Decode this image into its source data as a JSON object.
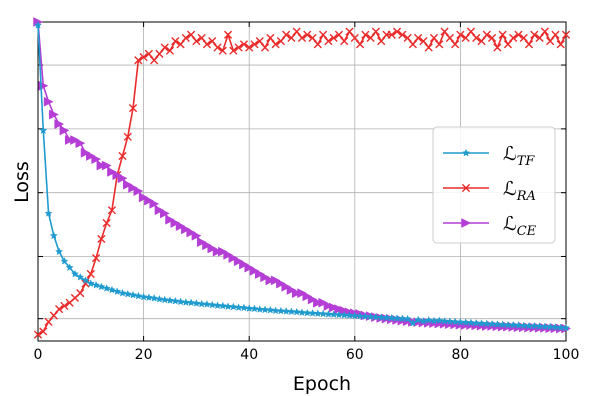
{
  "chart_data": {
    "type": "line",
    "xlabel": "Epoch",
    "ylabel": "Loss",
    "xlim": [
      0,
      100
    ],
    "ylim": [
      0,
      1
    ],
    "x_ticks": [
      "0",
      "20",
      "40",
      "60",
      "80",
      "100"
    ],
    "y_tick_labels_visible": false,
    "grid": true,
    "legend_position": "center-right",
    "x": [
      0,
      1,
      2,
      3,
      4,
      5,
      6,
      7,
      8,
      9,
      10,
      11,
      12,
      13,
      14,
      15,
      16,
      17,
      18,
      19,
      20,
      21,
      22,
      23,
      24,
      25,
      26,
      27,
      28,
      29,
      30,
      31,
      32,
      33,
      34,
      35,
      36,
      37,
      38,
      39,
      40,
      41,
      42,
      43,
      44,
      45,
      46,
      47,
      48,
      49,
      50,
      51,
      52,
      53,
      54,
      55,
      56,
      57,
      58,
      59,
      60,
      61,
      62,
      63,
      64,
      65,
      66,
      67,
      68,
      69,
      70,
      71,
      72,
      73,
      74,
      75,
      76,
      77,
      78,
      79,
      80,
      81,
      82,
      83,
      84,
      85,
      86,
      87,
      88,
      89,
      90,
      91,
      92,
      93,
      94,
      95,
      96,
      97,
      98,
      99,
      100
    ],
    "series": [
      {
        "name": "L_TF",
        "name_base": "ℒ",
        "name_sub": "TF",
        "color": "#1f9bcf",
        "marker": "star",
        "values": [
          0.99,
          0.66,
          0.4,
          0.33,
          0.28,
          0.25,
          0.23,
          0.21,
          0.2,
          0.19,
          0.18,
          0.175,
          0.17,
          0.165,
          0.16,
          0.155,
          0.15,
          0.147,
          0.144,
          0.141,
          0.138,
          0.136,
          0.134,
          0.131,
          0.129,
          0.127,
          0.125,
          0.123,
          0.121,
          0.12,
          0.118,
          0.116,
          0.115,
          0.113,
          0.111,
          0.11,
          0.108,
          0.107,
          0.105,
          0.104,
          0.102,
          0.101,
          0.099,
          0.098,
          0.097,
          0.095,
          0.094,
          0.093,
          0.092,
          0.091,
          0.089,
          0.088,
          0.087,
          0.086,
          0.085,
          0.084,
          0.083,
          0.082,
          0.081,
          0.08,
          0.079,
          0.078,
          0.077,
          0.076,
          0.075,
          0.074,
          0.073,
          0.072,
          0.071,
          0.07,
          0.069,
          0.056,
          0.066,
          0.062,
          0.065,
          0.063,
          0.064,
          0.062,
          0.061,
          0.06,
          0.059,
          0.058,
          0.057,
          0.056,
          0.055,
          0.054,
          0.053,
          0.052,
          0.051,
          0.05,
          0.05,
          0.049,
          0.048,
          0.047,
          0.047,
          0.046,
          0.045,
          0.044,
          0.043,
          0.042,
          0.041
        ]
      },
      {
        "name": "L_RA",
        "name_base": "ℒ",
        "name_sub": "RA",
        "color": "#ea2b2b",
        "marker": "x",
        "values": [
          0.02,
          0.03,
          0.06,
          0.08,
          0.1,
          0.11,
          0.12,
          0.135,
          0.15,
          0.18,
          0.21,
          0.26,
          0.32,
          0.37,
          0.41,
          0.52,
          0.58,
          0.64,
          0.73,
          0.88,
          0.89,
          0.9,
          0.88,
          0.9,
          0.92,
          0.91,
          0.94,
          0.93,
          0.95,
          0.96,
          0.94,
          0.95,
          0.93,
          0.94,
          0.92,
          0.91,
          0.96,
          0.91,
          0.92,
          0.93,
          0.92,
          0.93,
          0.94,
          0.92,
          0.95,
          0.93,
          0.94,
          0.96,
          0.95,
          0.97,
          0.95,
          0.96,
          0.95,
          0.93,
          0.96,
          0.94,
          0.95,
          0.96,
          0.94,
          0.97,
          0.95,
          0.93,
          0.96,
          0.95,
          0.97,
          0.94,
          0.96,
          0.96,
          0.97,
          0.96,
          0.95,
          0.93,
          0.95,
          0.94,
          0.92,
          0.95,
          0.93,
          0.97,
          0.95,
          0.93,
          0.96,
          0.95,
          0.97,
          0.95,
          0.94,
          0.96,
          0.95,
          0.92,
          0.96,
          0.93,
          0.95,
          0.96,
          0.95,
          0.93,
          0.96,
          0.95,
          0.97,
          0.94,
          0.96,
          0.93,
          0.96
        ]
      },
      {
        "name": "L_CE",
        "name_base": "ℒ",
        "name_sub": "CE",
        "color": "#b43ed6",
        "marker": "triangle-right",
        "values": [
          1.0,
          0.8,
          0.75,
          0.71,
          0.68,
          0.66,
          0.63,
          0.63,
          0.62,
          0.59,
          0.58,
          0.57,
          0.55,
          0.55,
          0.53,
          0.52,
          0.51,
          0.49,
          0.48,
          0.47,
          0.45,
          0.44,
          0.43,
          0.41,
          0.4,
          0.38,
          0.37,
          0.36,
          0.35,
          0.34,
          0.33,
          0.31,
          0.3,
          0.29,
          0.28,
          0.28,
          0.27,
          0.26,
          0.25,
          0.24,
          0.23,
          0.22,
          0.21,
          0.2,
          0.19,
          0.19,
          0.18,
          0.17,
          0.16,
          0.15,
          0.15,
          0.14,
          0.13,
          0.12,
          0.12,
          0.11,
          0.105,
          0.1,
          0.095,
          0.09,
          0.087,
          0.085,
          0.08,
          0.078,
          0.075,
          0.072,
          0.07,
          0.068,
          0.066,
          0.064,
          0.062,
          0.06,
          0.059,
          0.058,
          0.057,
          0.056,
          0.055,
          0.054,
          0.053,
          0.052,
          0.051,
          0.05,
          0.05,
          0.049,
          0.048,
          0.047,
          0.047,
          0.046,
          0.045,
          0.045,
          0.044,
          0.043,
          0.043,
          0.042,
          0.042,
          0.041,
          0.041,
          0.04,
          0.04,
          0.039,
          0.039
        ]
      }
    ]
  }
}
